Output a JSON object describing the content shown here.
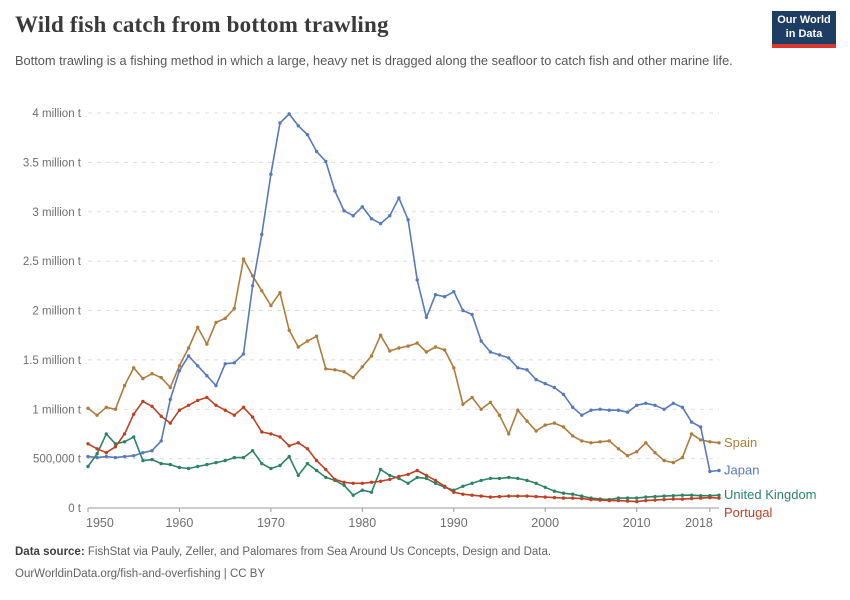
{
  "header": {
    "title": "Wild fish catch from bottom trawling",
    "subtitle": "Bottom trawling is a fishing method in which a large, heavy net is dragged along the seafloor to catch fish and other marine life.",
    "logo": {
      "line1": "Our World",
      "line2": "in Data"
    }
  },
  "footer": {
    "source_label": "Data source:",
    "source_text": "FishStat via Pauly, Zeller, and Palomares from Sea Around Us Concepts, Design and Data.",
    "link": "OurWorldinData.org/fish-and-overfishing",
    "license_suffix": " | CC BY"
  },
  "chart_data": {
    "type": "line",
    "title": "Wild fish catch from bottom trawling",
    "xlabel": "",
    "ylabel": "",
    "unit": "tonnes",
    "grid": "horizontal-dashed",
    "legend_position": "right-of-line-ends",
    "xlim": [
      1950,
      2019
    ],
    "ylim": [
      0,
      4.05
    ],
    "x_ticks": [
      1950,
      1960,
      1970,
      1980,
      1990,
      2000,
      2010,
      2018
    ],
    "y_ticks": [
      {
        "value": 0,
        "label": "0 t"
      },
      {
        "value": 0.5,
        "label": "500,000 t"
      },
      {
        "value": 1,
        "label": "1 million t"
      },
      {
        "value": 1.5,
        "label": "1.5 million t"
      },
      {
        "value": 2,
        "label": "2 million t"
      },
      {
        "value": 2.5,
        "label": "2.5 million t"
      },
      {
        "value": 3,
        "label": "3 million t"
      },
      {
        "value": 3.5,
        "label": "3.5 million t"
      },
      {
        "value": 4,
        "label": "4 million t"
      }
    ],
    "years": [
      1950,
      1951,
      1952,
      1953,
      1954,
      1955,
      1956,
      1957,
      1958,
      1959,
      1960,
      1961,
      1962,
      1963,
      1964,
      1965,
      1966,
      1967,
      1968,
      1969,
      1970,
      1971,
      1972,
      1973,
      1974,
      1975,
      1976,
      1977,
      1978,
      1979,
      1980,
      1981,
      1982,
      1983,
      1984,
      1985,
      1986,
      1987,
      1988,
      1989,
      1990,
      1991,
      1992,
      1993,
      1994,
      1995,
      1996,
      1997,
      1998,
      1999,
      2000,
      2001,
      2002,
      2003,
      2004,
      2005,
      2006,
      2007,
      2008,
      2009,
      2010,
      2011,
      2012,
      2013,
      2014,
      2015,
      2016,
      2017,
      2018,
      2019
    ],
    "values_unit": "million tonnes",
    "series": [
      {
        "name": "Spain",
        "color": "#AE7C3C",
        "values": [
          1.01,
          0.94,
          1.02,
          1.0,
          1.24,
          1.42,
          1.31,
          1.36,
          1.32,
          1.22,
          1.44,
          1.62,
          1.83,
          1.66,
          1.88,
          1.92,
          2.02,
          2.52,
          2.35,
          2.2,
          2.05,
          2.18,
          1.8,
          1.63,
          1.69,
          1.74,
          1.41,
          1.4,
          1.38,
          1.32,
          1.43,
          1.54,
          1.75,
          1.59,
          1.62,
          1.64,
          1.67,
          1.58,
          1.63,
          1.6,
          1.42,
          1.05,
          1.12,
          1.0,
          1.07,
          0.94,
          0.75,
          0.99,
          0.88,
          0.78,
          0.84,
          0.86,
          0.82,
          0.73,
          0.68,
          0.66,
          0.67,
          0.68,
          0.6,
          0.53,
          0.57,
          0.66,
          0.56,
          0.48,
          0.46,
          0.51,
          0.75,
          0.69,
          0.67,
          0.66
        ]
      },
      {
        "name": "Japan",
        "color": "#5879BA",
        "values": [
          0.52,
          0.51,
          0.52,
          0.51,
          0.52,
          0.53,
          0.56,
          0.58,
          0.68,
          1.1,
          1.39,
          1.54,
          1.44,
          1.34,
          1.24,
          1.46,
          1.47,
          1.56,
          2.25,
          2.77,
          3.38,
          3.9,
          3.99,
          3.87,
          3.78,
          3.61,
          3.51,
          3.21,
          3.01,
          2.96,
          3.05,
          2.93,
          2.88,
          2.96,
          3.14,
          2.92,
          2.31,
          1.93,
          2.16,
          2.14,
          2.19,
          2.0,
          1.96,
          1.69,
          1.58,
          1.55,
          1.52,
          1.42,
          1.4,
          1.3,
          1.26,
          1.22,
          1.15,
          1.02,
          0.94,
          0.99,
          1.0,
          0.99,
          0.99,
          0.97,
          1.04,
          1.06,
          1.04,
          1.0,
          1.06,
          1.02,
          0.87,
          0.82,
          0.37,
          0.38
        ]
      },
      {
        "name": "United Kingdom",
        "color": "#2C8465",
        "values": [
          0.42,
          0.55,
          0.75,
          0.65,
          0.67,
          0.72,
          0.48,
          0.49,
          0.45,
          0.44,
          0.41,
          0.4,
          0.42,
          0.44,
          0.46,
          0.48,
          0.51,
          0.51,
          0.58,
          0.45,
          0.4,
          0.43,
          0.52,
          0.33,
          0.45,
          0.38,
          0.31,
          0.28,
          0.23,
          0.13,
          0.18,
          0.16,
          0.39,
          0.33,
          0.3,
          0.25,
          0.31,
          0.3,
          0.25,
          0.21,
          0.18,
          0.22,
          0.25,
          0.28,
          0.3,
          0.3,
          0.31,
          0.3,
          0.28,
          0.25,
          0.21,
          0.17,
          0.15,
          0.14,
          0.12,
          0.1,
          0.09,
          0.085,
          0.1,
          0.1,
          0.1,
          0.11,
          0.115,
          0.12,
          0.125,
          0.13,
          0.13,
          0.125,
          0.125,
          0.13
        ]
      },
      {
        "name": "Portugal",
        "color": "#BC4126",
        "values": [
          0.65,
          0.6,
          0.56,
          0.62,
          0.75,
          0.95,
          1.08,
          1.03,
          0.93,
          0.86,
          0.99,
          1.04,
          1.09,
          1.12,
          1.04,
          0.99,
          0.94,
          1.02,
          0.92,
          0.77,
          0.75,
          0.72,
          0.63,
          0.66,
          0.6,
          0.48,
          0.39,
          0.29,
          0.26,
          0.25,
          0.25,
          0.26,
          0.27,
          0.29,
          0.32,
          0.34,
          0.38,
          0.33,
          0.28,
          0.22,
          0.16,
          0.14,
          0.13,
          0.12,
          0.11,
          0.115,
          0.12,
          0.12,
          0.12,
          0.115,
          0.11,
          0.105,
          0.1,
          0.1,
          0.095,
          0.085,
          0.08,
          0.075,
          0.075,
          0.07,
          0.065,
          0.075,
          0.08,
          0.085,
          0.09,
          0.09,
          0.095,
          0.1,
          0.105,
          0.1
        ]
      }
    ]
  }
}
